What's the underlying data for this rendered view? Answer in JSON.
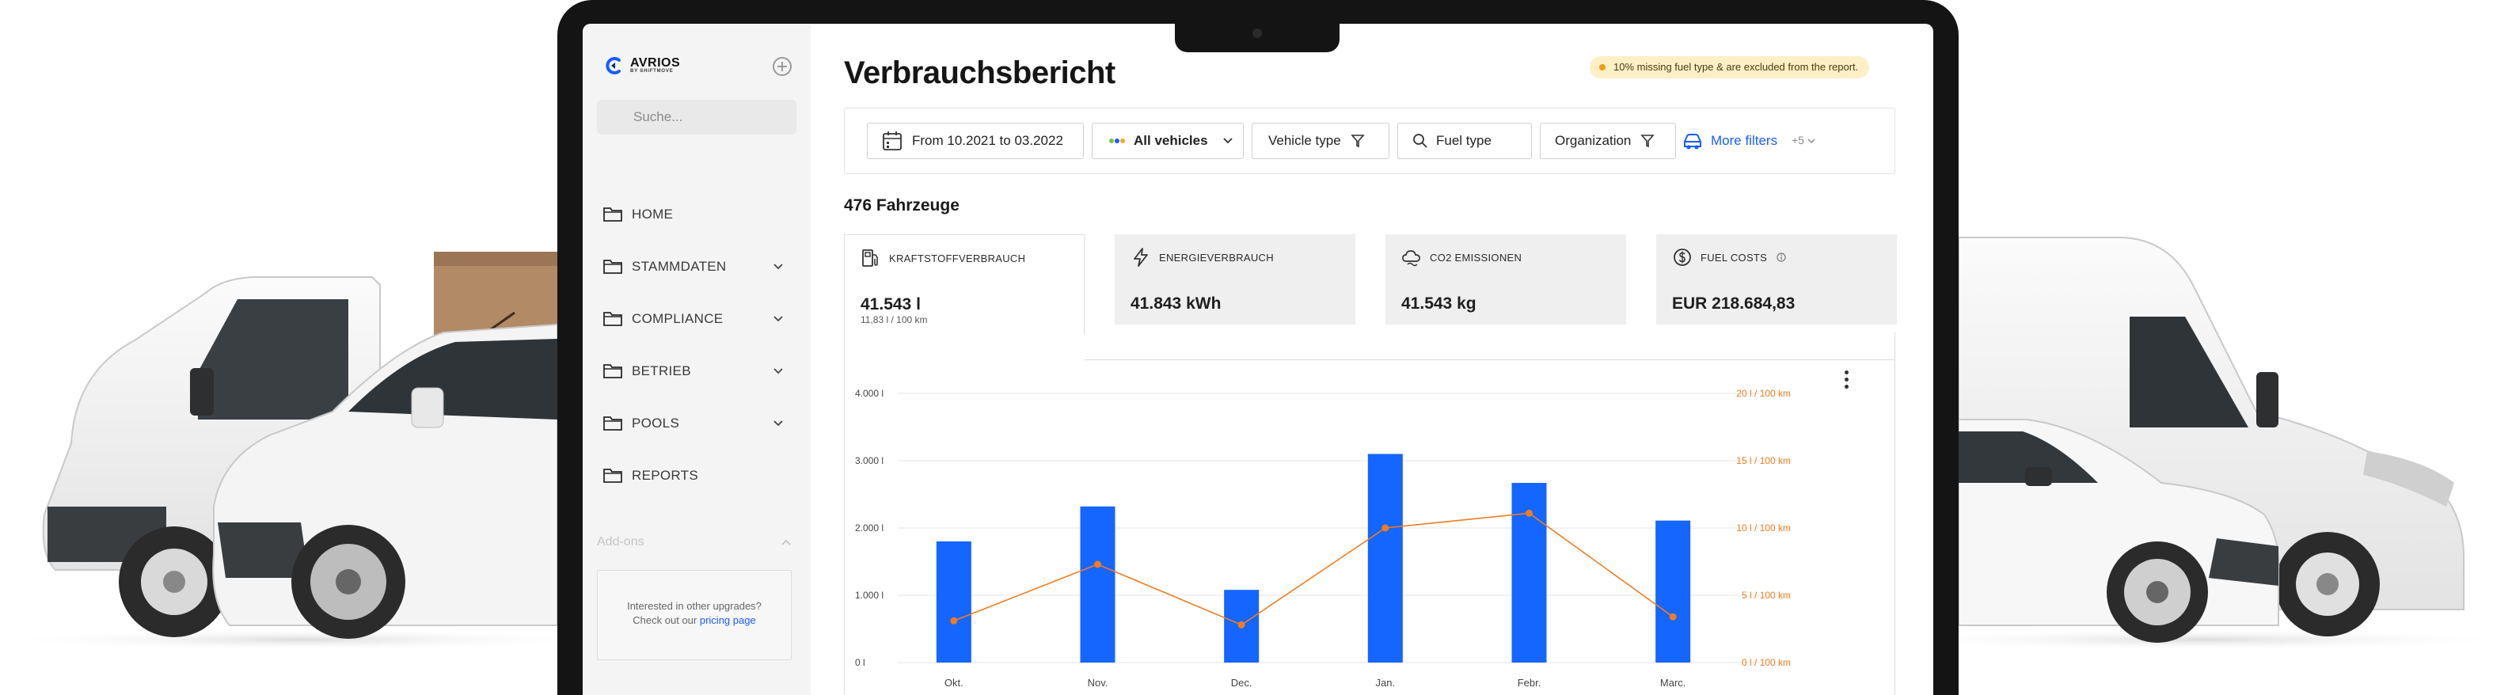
{
  "app": {
    "brand": "AVRIOS",
    "brand_sub": "BY SHIFTMOVE",
    "search_placeholder": "Suche..."
  },
  "sidebar": {
    "items": [
      {
        "label": "HOME",
        "expandable": false
      },
      {
        "label": "STAMMDATEN",
        "expandable": true
      },
      {
        "label": "COMPLIANCE",
        "expandable": true
      },
      {
        "label": "BETRIEB",
        "expandable": true
      },
      {
        "label": "POOLS",
        "expandable": true
      },
      {
        "label": "REPORTS",
        "expandable": false
      }
    ],
    "addons_label": "Add-ons",
    "upgrade_line1": "Interested in other upgrades?",
    "upgrade_line2_prefix": "Check out our",
    "upgrade_link": "pricing page"
  },
  "header": {
    "title": "Verbrauchsbericht",
    "notice": "10% missing fuel type & are excluded from the report."
  },
  "filters": {
    "date_range": "From 10.2021 to 03.2022",
    "vehicles": "All vehicles",
    "vehicle_type": "Vehicle type",
    "fuel_type": "Fuel type",
    "organization": "Organization",
    "more_filters": "More filters",
    "extra_count": "+5"
  },
  "summary": {
    "vehicle_count": "476 Fahrzeuge"
  },
  "tabs": [
    {
      "label": "KRAFTSTOFFVERBRAUCH",
      "value": "41.543 l",
      "sub": "11,83 l / 100 km",
      "active": true,
      "icon": "fuel-pump-icon"
    },
    {
      "label": "ENERGIEVERBRAUCH",
      "value": "41.843 kWh",
      "sub": "",
      "active": false,
      "icon": "lightning-icon"
    },
    {
      "label": "CO2 EMISSIONEN",
      "value": "41.543 kg",
      "sub": "",
      "active": false,
      "icon": "co2-cloud-icon"
    },
    {
      "label": "FUEL COSTS",
      "value": "EUR 218.684,83",
      "sub": "",
      "active": false,
      "icon": "dollar-coin-icon"
    }
  ],
  "colors": {
    "accent_blue": "#1a5cff",
    "bar_blue": "#1565ff",
    "line_orange": "#f07c1e",
    "notice_bg": "#fdf0c6"
  },
  "chart_data": {
    "type": "bar",
    "categories": [
      "Okt.",
      "Nov.",
      "Dec.",
      "Jan.",
      "Febr.",
      "Marc."
    ],
    "series": [
      {
        "values": [
          1800,
          2320,
          1080,
          3100,
          2670,
          2110
        ],
        "kind": "bar",
        "axis": "left"
      },
      {
        "values": [
          3.1,
          7.3,
          2.8,
          10.0,
          11.1,
          3.4
        ],
        "kind": "line",
        "axis": "right"
      }
    ],
    "y_left": {
      "ticks": [
        "4.000 l",
        "3.000 l",
        "2.000 l",
        "1.000 l",
        "0 l"
      ],
      "ylim": [
        0,
        4000
      ]
    },
    "y_right": {
      "ticks": [
        "20 l / 100 km",
        "15 l / 100 km",
        "10 l / 100 km",
        "5 l / 100 km",
        "0 l / 100 km"
      ],
      "ylim": [
        0,
        20
      ]
    },
    "grid": true
  }
}
